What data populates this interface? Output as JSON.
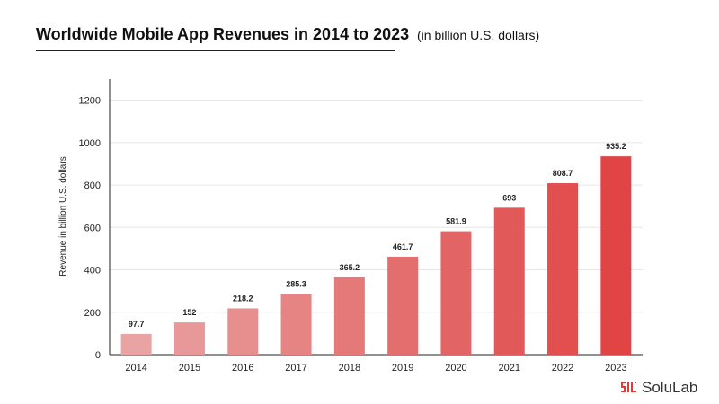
{
  "chart_data": {
    "type": "bar",
    "title": "Worldwide Mobile App Revenues in 2014 to 2023",
    "subtitle": "(in billion U.S. dollars)",
    "ylabel": "Revenue in billion U.S. dollars",
    "xlabel": "",
    "categories": [
      "2014",
      "2015",
      "2016",
      "2017",
      "2018",
      "2019",
      "2020",
      "2021",
      "2022",
      "2023"
    ],
    "values": [
      97.7,
      152,
      218.2,
      285.3,
      365.2,
      461.7,
      581.9,
      693,
      808.7,
      935.2
    ],
    "data_labels": [
      "97.7",
      "152",
      "218.2",
      "285.3",
      "365.2",
      "461.7",
      "581.9",
      "693",
      "808.7",
      "935.2"
    ],
    "ylim": [
      0,
      1300
    ],
    "yticks": [
      0,
      200,
      400,
      600,
      800,
      1000,
      1200
    ],
    "grid": true,
    "legend": "none",
    "colors": {
      "start": "#e9a3a3",
      "end": "#e04444",
      "grid": "#e6e6e6",
      "axis": "#222222"
    }
  },
  "branding": {
    "logo_text": "SoluLab",
    "logo_icon": "solulab-logo-icon",
    "logo_color": "#e53935"
  }
}
